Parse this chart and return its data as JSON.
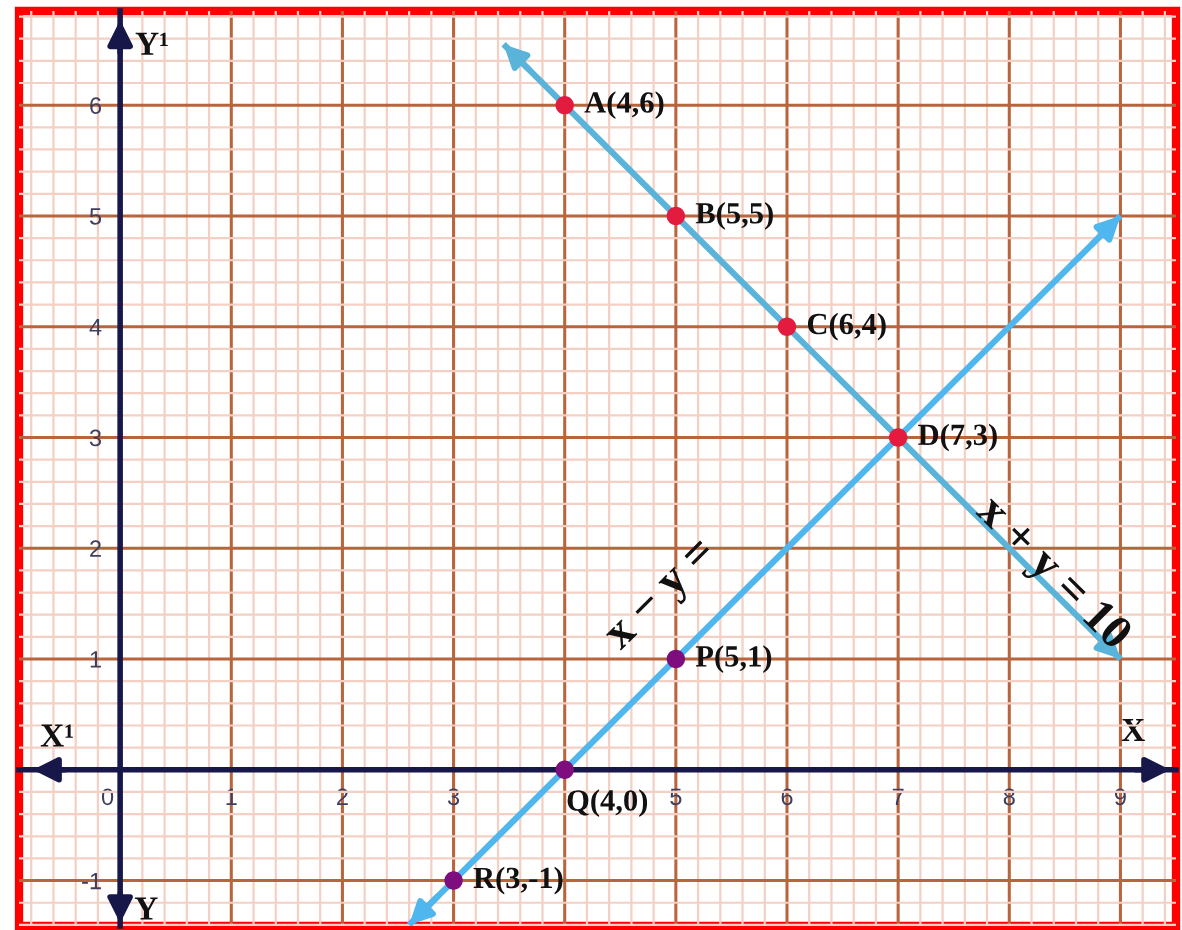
{
  "chart_data": {
    "type": "line",
    "xlabel": "X",
    "ylabel": "Y¹",
    "annotations": [
      "X¹",
      "Y"
    ],
    "xlim": [
      -0.91,
      9.5
    ],
    "ylim": [
      -1.41,
      6.85
    ],
    "xticks": [
      {
        "value": -0.8,
        "label": null
      },
      {
        "value": -0.6,
        "label": null
      },
      {
        "value": -0.4,
        "label": null
      },
      {
        "value": -0.2,
        "label": null
      },
      0,
      {
        "value": 0.2,
        "label": null
      },
      {
        "value": 0.4,
        "label": null
      },
      {
        "value": 0.6,
        "label": null
      },
      {
        "value": 0.8,
        "label": null
      },
      1,
      {
        "value": 1.2,
        "label": null
      },
      {
        "value": 1.4,
        "label": null
      },
      {
        "value": 1.6,
        "label": null
      },
      {
        "value": 1.8,
        "label": null
      },
      2,
      {
        "value": 2.2,
        "label": null
      },
      {
        "value": 2.4,
        "label": null
      },
      {
        "value": 2.6,
        "label": null
      },
      {
        "value": 2.8,
        "label": null
      },
      3,
      {
        "value": 3.2,
        "label": null
      },
      {
        "value": 3.4,
        "label": null
      },
      {
        "value": 3.6,
        "label": null
      },
      {
        "value": 3.8,
        "label": null
      },
      {
        "value": 4,
        "label": null
      },
      {
        "value": 4.2,
        "label": null
      },
      {
        "value": 4.4,
        "label": null
      },
      {
        "value": 4.6,
        "label": null
      },
      {
        "value": 4.8,
        "label": null
      },
      5,
      {
        "value": 5.2,
        "label": null
      },
      {
        "value": 5.4,
        "label": null
      },
      {
        "value": 5.6,
        "label": null
      },
      {
        "value": 5.8,
        "label": null
      },
      6,
      {
        "value": 6.2,
        "label": null
      },
      {
        "value": 6.4,
        "label": null
      },
      {
        "value": 6.6,
        "label": null
      },
      {
        "value": 6.8,
        "label": null
      },
      7,
      {
        "value": 7.2,
        "label": null
      },
      {
        "value": 7.4,
        "label": null
      },
      {
        "value": 7.6,
        "label": null
      },
      {
        "value": 7.8,
        "label": null
      },
      8,
      {
        "value": 8.2,
        "label": null
      },
      {
        "value": 8.4,
        "label": null
      },
      {
        "value": 8.6,
        "label": null
      },
      {
        "value": 8.8,
        "label": null
      },
      9,
      {
        "value": 9.2,
        "label": null
      },
      {
        "value": 9.4,
        "label": null
      }
    ],
    "yticks": [
      {
        "value": -1.4,
        "label": null
      },
      {
        "value": -1.2,
        "label": null
      },
      -1,
      {
        "value": -0.8,
        "label": null
      },
      {
        "value": -0.6,
        "label": null
      },
      {
        "value": -0.4,
        "label": null
      },
      {
        "value": -0.2,
        "label": null
      },
      {
        "value": 0,
        "label": null
      },
      {
        "value": 0.2,
        "label": null
      },
      {
        "value": 0.4,
        "label": null
      },
      {
        "value": 0.6,
        "label": null
      },
      {
        "value": 0.8,
        "label": null
      },
      1,
      {
        "value": 1.2,
        "label": null
      },
      {
        "value": 1.4,
        "label": null
      },
      {
        "value": 1.6,
        "label": null
      },
      {
        "value": 1.8,
        "label": null
      },
      2,
      {
        "value": 2.2,
        "label": null
      },
      {
        "value": 2.4,
        "label": null
      },
      {
        "value": 2.6,
        "label": null
      },
      {
        "value": 2.8,
        "label": null
      },
      3,
      {
        "value": 3.2,
        "label": null
      },
      {
        "value": 3.4,
        "label": null
      },
      {
        "value": 3.6,
        "label": null
      },
      {
        "value": 3.8,
        "label": null
      },
      4,
      {
        "value": 4.2,
        "label": null
      },
      {
        "value": 4.4,
        "label": null
      },
      {
        "value": 4.6,
        "label": null
      },
      {
        "value": 4.8,
        "label": null
      },
      5,
      {
        "value": 5.2,
        "label": null
      },
      {
        "value": 5.4,
        "label": null
      },
      {
        "value": 5.6,
        "label": null
      },
      {
        "value": 5.8,
        "label": null
      },
      6,
      {
        "value": 6.2,
        "label": null
      },
      {
        "value": 6.4,
        "label": null
      },
      {
        "value": 6.6,
        "label": null
      },
      {
        "value": 6.8,
        "label": null
      }
    ],
    "grid": true,
    "series": [
      {
        "name": "x + y = 10",
        "color": "#5ab4da",
        "x": [
          3.45,
          9
        ],
        "values": [
          6.55,
          1
        ],
        "marker": "none"
      },
      {
        "name": "x − y =",
        "color": "#4fb6ee",
        "x": [
          2.6,
          9
        ],
        "values": [
          -1.4,
          5
        ],
        "marker": "none"
      },
      {
        "type": "scatter",
        "color": "#e31b3f",
        "x": [
          4,
          5,
          6,
          7
        ],
        "values": [
          6,
          5,
          4,
          3
        ],
        "value_labels": [
          "A(4,6)",
          "B(5,5)",
          "C(6,4)",
          "D(7,3)"
        ],
        "marker": "circle"
      },
      {
        "type": "scatter",
        "color": "#7e0d7e",
        "x": [
          3,
          4,
          5
        ],
        "values": [
          -1,
          0,
          1
        ],
        "value_labels": [
          "R(3,-1)",
          "Q(4,0)",
          "P(5,1)"
        ],
        "marker": "circle"
      }
    ]
  }
}
